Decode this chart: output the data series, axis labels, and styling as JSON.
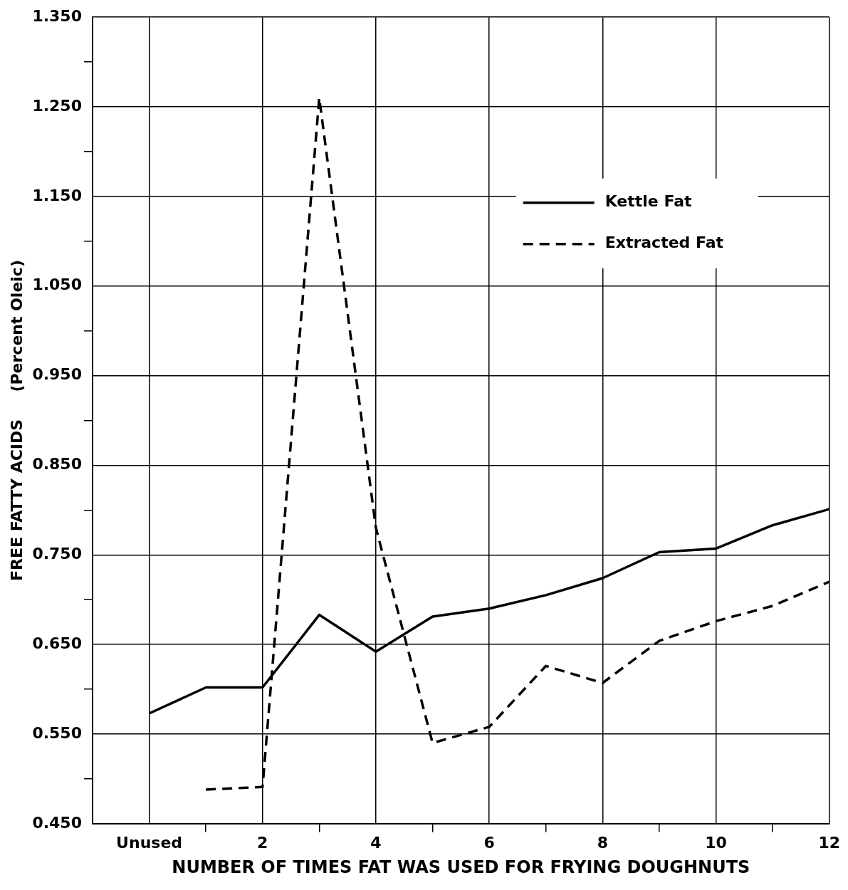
{
  "chart_data": {
    "type": "line",
    "xlabel": "NUMBER OF TIMES FAT WAS USED FOR FRYING DOUGHNUTS",
    "ylabel": "FREE FATTY ACIDS     (Percent Oleic)",
    "series": [
      {
        "name": "Kettle Fat",
        "color": "#000000",
        "line_style": "solid",
        "x": [
          0,
          1,
          2,
          3,
          4,
          5,
          6,
          7,
          8,
          9,
          10,
          11,
          12
        ],
        "values": [
          0.573,
          0.602,
          0.602,
          0.683,
          0.642,
          0.681,
          0.69,
          0.705,
          0.724,
          0.753,
          0.757,
          0.783,
          0.801
        ]
      },
      {
        "name": "Extracted Fat",
        "color": "#000000",
        "line_style": "dashed",
        "x": [
          1,
          2,
          3,
          4,
          5,
          6,
          7,
          8,
          9,
          10,
          11,
          12
        ],
        "values": [
          0.488,
          0.491,
          1.26,
          0.78,
          0.54,
          0.558,
          0.626,
          0.607,
          0.654,
          0.676,
          0.693,
          0.72
        ]
      }
    ],
    "xlim": [
      -1,
      12
    ],
    "xticks": [
      {
        "value": 0,
        "label": "Unused"
      },
      {
        "value": 1,
        "label": null
      },
      2,
      {
        "value": 3,
        "label": null
      },
      4,
      {
        "value": 5,
        "label": null
      },
      6,
      {
        "value": 7,
        "label": null
      },
      8,
      {
        "value": 9,
        "label": null
      },
      10,
      {
        "value": 11,
        "label": null
      },
      12
    ],
    "ylim": [
      0.45,
      1.35
    ],
    "yticks": [
      {
        "value": 0.45,
        "label": "0.450"
      },
      {
        "value": 0.5,
        "label": null
      },
      {
        "value": 0.55,
        "label": "0.550"
      },
      {
        "value": 0.6,
        "label": null
      },
      {
        "value": 0.65,
        "label": "0.650"
      },
      {
        "value": 0.7,
        "label": null
      },
      {
        "value": 0.75,
        "label": "0.750"
      },
      {
        "value": 0.8,
        "label": null
      },
      {
        "value": 0.85,
        "label": "0.850"
      },
      {
        "value": 0.9,
        "label": null
      },
      {
        "value": 0.95,
        "label": "0.950"
      },
      {
        "value": 1.0,
        "label": null
      },
      {
        "value": 1.05,
        "label": "1.050"
      },
      {
        "value": 1.1,
        "label": null
      },
      {
        "value": 1.15,
        "label": "1.150"
      },
      {
        "value": 1.2,
        "label": null
      },
      {
        "value": 1.25,
        "label": "1.250"
      },
      {
        "value": 1.3,
        "label": null
      },
      {
        "value": 1.35,
        "label": "1.350"
      }
    ],
    "grid": true,
    "legend": "top right",
    "marker": "none"
  }
}
